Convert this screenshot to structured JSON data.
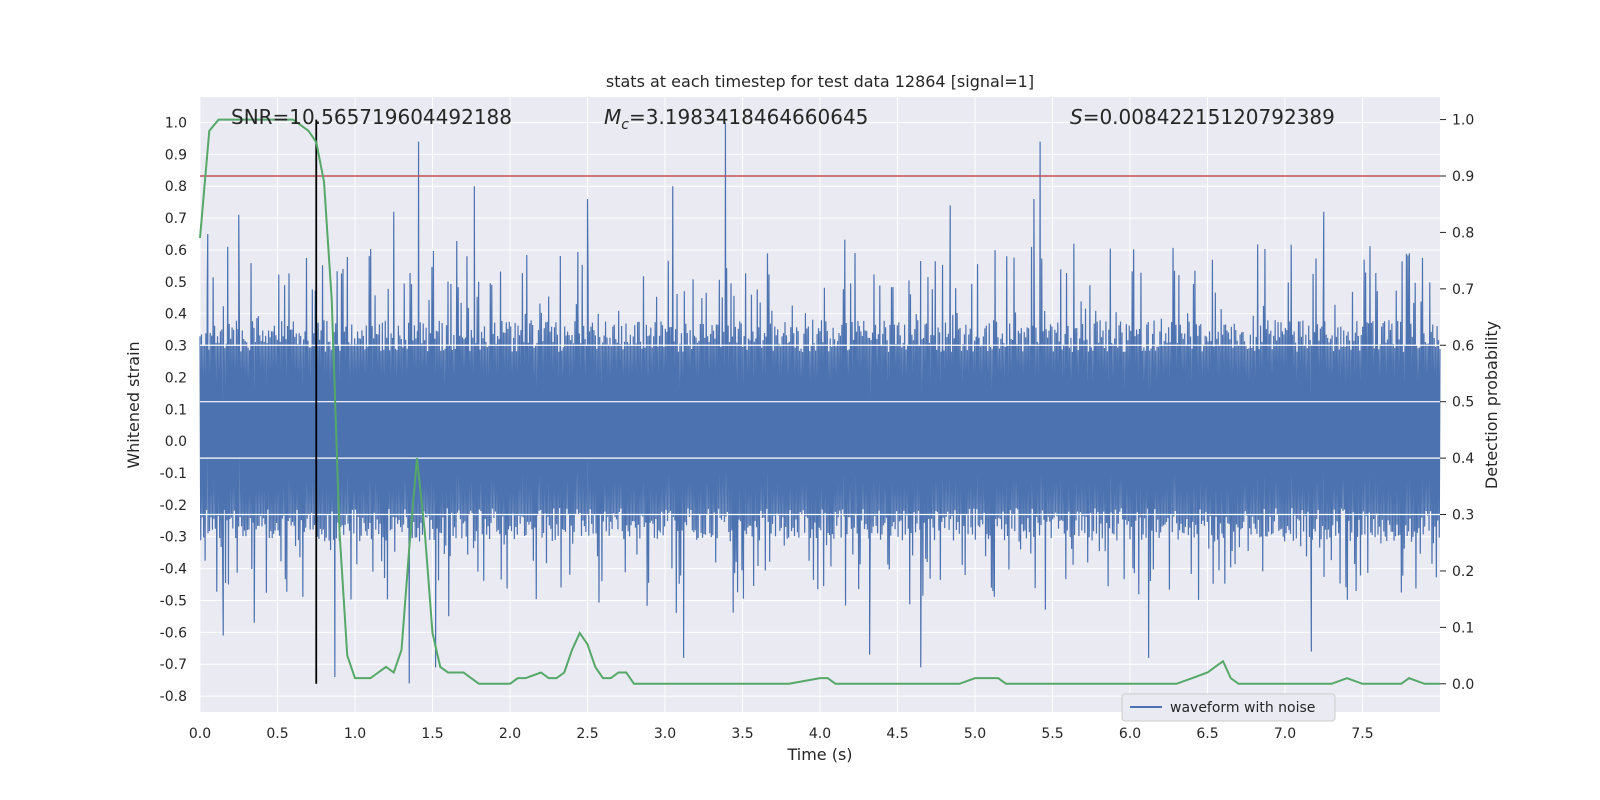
{
  "chart_data": {
    "type": "line",
    "title": "stats at each timestep for test data 12864 [signal=1]",
    "xlabel": "Time (s)",
    "ylabel": "Whitened strain",
    "y2label": "Detection probability",
    "xlim": [
      0.0,
      8.0
    ],
    "ylim": [
      -0.85,
      1.08
    ],
    "y2lim": [
      -0.05,
      1.04
    ],
    "x_ticks": [
      "0.0",
      "0.5",
      "1.0",
      "1.5",
      "2.0",
      "2.5",
      "3.0",
      "3.5",
      "4.0",
      "4.5",
      "5.0",
      "5.5",
      "6.0",
      "6.5",
      "7.0",
      "7.5"
    ],
    "y_ticks": [
      "-0.8",
      "-0.7",
      "-0.6",
      "-0.5",
      "-0.4",
      "-0.3",
      "-0.2",
      "-0.1",
      "0.0",
      "0.1",
      "0.2",
      "0.3",
      "0.4",
      "0.5",
      "0.6",
      "0.7",
      "0.8",
      "0.9",
      "1.0"
    ],
    "y2_ticks": [
      "0.0",
      "0.1",
      "0.2",
      "0.3",
      "0.4",
      "0.5",
      "0.6",
      "0.7",
      "0.8",
      "0.9",
      "1.0"
    ],
    "annotations": {
      "snr": "SNR=10.565719604492188",
      "mc_symbol": "M",
      "mc_sub": "c",
      "mc_value": "=3.1983418464660645",
      "s_symbol": "S",
      "s_value": "=0.0084221512079238­9"
    },
    "threshold": {
      "value": 0.9,
      "axis": "right",
      "color": "#c44e52"
    },
    "marker_time": 0.75,
    "grid": true,
    "legend": {
      "placement": "lower-right",
      "entries": [
        "waveform with noise"
      ]
    },
    "colors": {
      "waveform": "#4c72b0",
      "probability": "#55a868",
      "threshold": "#c44e52",
      "marker": "#000000",
      "plot_bg": "#eaeaf2",
      "grid": "#ffffff"
    },
    "waveform": {
      "name": "waveform with noise",
      "time_range": [
        0.0,
        8.0
      ],
      "core_band": [
        -0.3,
        0.4
      ],
      "peaks": [
        {
          "t": 0.05,
          "v": 0.65
        },
        {
          "t": 0.25,
          "v": 0.71
        },
        {
          "t": 1.25,
          "v": 0.72
        },
        {
          "t": 1.41,
          "v": 0.94
        },
        {
          "t": 1.77,
          "v": 0.8
        },
        {
          "t": 2.5,
          "v": 0.76
        },
        {
          "t": 3.05,
          "v": 0.8
        },
        {
          "t": 3.39,
          "v": 1.0
        },
        {
          "t": 4.84,
          "v": 0.74
        },
        {
          "t": 5.38,
          "v": 0.76
        },
        {
          "t": 5.42,
          "v": 0.94
        },
        {
          "t": 7.25,
          "v": 0.72
        },
        {
          "t": 0.15,
          "v": -0.61
        },
        {
          "t": 0.35,
          "v": -0.57
        },
        {
          "t": 0.87,
          "v": -0.74
        },
        {
          "t": 1.35,
          "v": -0.76
        },
        {
          "t": 1.52,
          "v": -0.71
        },
        {
          "t": 3.12,
          "v": -0.68
        },
        {
          "t": 4.32,
          "v": -0.67
        },
        {
          "t": 4.65,
          "v": -0.71
        },
        {
          "t": 6.12,
          "v": -0.68
        },
        {
          "t": 7.17,
          "v": -0.66
        }
      ]
    },
    "probability": {
      "name": "detection probability",
      "x": [
        0.0,
        0.06,
        0.12,
        0.2,
        0.3,
        0.4,
        0.5,
        0.6,
        0.65,
        0.7,
        0.75,
        0.8,
        0.85,
        0.9,
        0.95,
        1.0,
        1.05,
        1.1,
        1.15,
        1.2,
        1.25,
        1.3,
        1.35,
        1.4,
        1.45,
        1.5,
        1.55,
        1.6,
        1.65,
        1.7,
        1.75,
        1.8,
        1.9,
        2.0,
        2.05,
        2.1,
        2.2,
        2.25,
        2.3,
        2.35,
        2.4,
        2.45,
        2.5,
        2.55,
        2.6,
        2.65,
        2.7,
        2.75,
        2.8,
        2.85,
        2.9,
        3.0,
        3.2,
        3.5,
        3.8,
        4.0,
        4.05,
        4.1,
        4.2,
        4.3,
        4.5,
        4.7,
        4.9,
        5.0,
        5.1,
        5.15,
        5.2,
        5.3,
        5.4,
        5.5,
        5.7,
        6.0,
        6.2,
        6.3,
        6.4,
        6.5,
        6.55,
        6.6,
        6.65,
        6.7,
        6.8,
        7.0,
        7.2,
        7.3,
        7.4,
        7.5,
        7.6,
        7.75,
        7.8,
        7.9,
        8.0
      ],
      "y": [
        0.79,
        0.98,
        1.0,
        1.0,
        1.0,
        1.0,
        1.0,
        1.0,
        0.99,
        0.98,
        0.96,
        0.89,
        0.68,
        0.27,
        0.05,
        0.01,
        0.01,
        0.01,
        0.02,
        0.03,
        0.02,
        0.06,
        0.24,
        0.4,
        0.27,
        0.09,
        0.03,
        0.02,
        0.02,
        0.02,
        0.01,
        0.0,
        0.0,
        0.0,
        0.01,
        0.01,
        0.02,
        0.01,
        0.01,
        0.02,
        0.06,
        0.09,
        0.07,
        0.03,
        0.01,
        0.01,
        0.02,
        0.02,
        0.0,
        0.0,
        0.0,
        0.0,
        0.0,
        0.0,
        0.0,
        0.01,
        0.01,
        0.0,
        0.0,
        0.0,
        0.0,
        0.0,
        0.0,
        0.01,
        0.01,
        0.01,
        0.0,
        0.0,
        0.0,
        0.0,
        0.0,
        0.0,
        0.0,
        0.0,
        0.01,
        0.02,
        0.03,
        0.04,
        0.01,
        0.0,
        0.0,
        0.0,
        0.0,
        0.0,
        0.01,
        0.0,
        0.0,
        0.0,
        0.01,
        0.0,
        0.0
      ]
    }
  }
}
